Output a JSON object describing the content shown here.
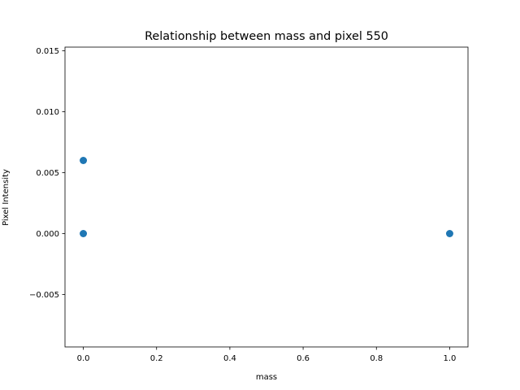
{
  "chart_data": {
    "type": "scatter",
    "title": "Relationship between mass and pixel 550",
    "xlabel": "mass",
    "ylabel": "Pixel Intensity",
    "xlim": [
      -0.05,
      1.05
    ],
    "ylim": [
      -0.0093,
      0.0153
    ],
    "xticks": [
      0.0,
      0.2,
      0.4,
      0.6,
      0.8,
      1.0
    ],
    "xtick_labels": [
      "0.0",
      "0.2",
      "0.4",
      "0.6",
      "0.8",
      "1.0"
    ],
    "yticks": [
      -0.005,
      0.0,
      0.005,
      0.01,
      0.015
    ],
    "ytick_labels": [
      "−0.005",
      "0.000",
      "0.005",
      "0.010",
      "0.015"
    ],
    "grid": false,
    "color": "#1f77b4",
    "points": [
      {
        "x": 0,
        "y": 0.006
      },
      {
        "x": 0,
        "y": 0.0
      },
      {
        "x": 1,
        "y": 0.0
      }
    ]
  }
}
